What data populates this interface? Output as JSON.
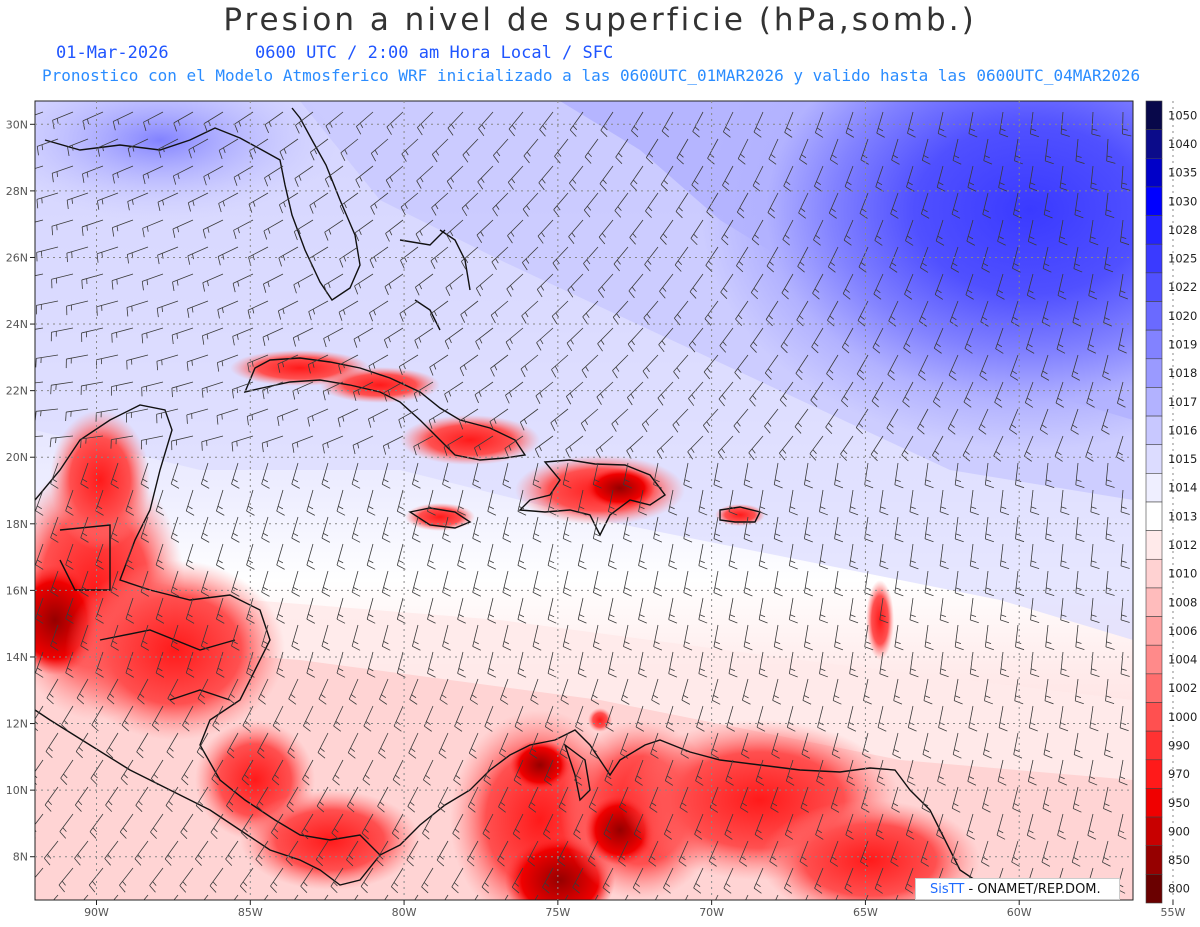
{
  "title": "Presion a nivel de superficie (hPa,somb.)",
  "subtitle": {
    "date": "01-Mar-2026",
    "time": "0600 UTC / 2:00 am Hora Local / SFC",
    "forecast": "Pronostico con el Modelo Atmosferico WRF inicializado a las 0600UTC_01MAR2026 y valido hasta las  0600UTC_04MAR2026"
  },
  "map": {
    "lat_labels": [
      "30N",
      "28N",
      "26N",
      "24N",
      "22N",
      "20N",
      "18N",
      "16N",
      "14N",
      "12N",
      "10N",
      "8N"
    ],
    "lat_values": [
      30,
      28,
      26,
      24,
      22,
      20,
      18,
      16,
      14,
      12,
      10,
      8
    ],
    "lon_labels": [
      "90W",
      "85W",
      "80W",
      "75W",
      "70W",
      "65W",
      "60W",
      "55W"
    ],
    "lon_values": [
      -90,
      -85,
      -80,
      -75,
      -70,
      -65,
      -60,
      -55
    ],
    "lon_range": [
      -92,
      -56.3
    ],
    "lat_range": [
      6.7,
      30.7
    ],
    "gridlines": "dotted"
  },
  "colorbar": {
    "levels": [
      "1050",
      "1040",
      "1035",
      "1030",
      "1028",
      "1025",
      "1022",
      "1020",
      "1019",
      "1018",
      "1017",
      "1016",
      "1015",
      "1014",
      "1013",
      "1012",
      "1010",
      "1008",
      "1006",
      "1004",
      "1002",
      "1000",
      "990",
      "970",
      "950",
      "900",
      "850",
      "800"
    ],
    "colors": [
      "#08084a",
      "#0b0b8a",
      "#0000c8",
      "#0000ff",
      "#2323ff",
      "#3a3aff",
      "#5050ff",
      "#6a6aff",
      "#8282ff",
      "#9a9aff",
      "#b2b2ff",
      "#c8c8ff",
      "#dcdcff",
      "#efefff",
      "#ffffff",
      "#ffeaea",
      "#ffd2d2",
      "#ffbcbc",
      "#ffa2a2",
      "#ff8a8a",
      "#ff6e6e",
      "#ff5050",
      "#ff3232",
      "#ff1a1a",
      "#f00000",
      "#c80000",
      "#960000",
      "#6a0000"
    ]
  },
  "credit": {
    "logo": "SisTT",
    "text": "- ONAMET/REP.DOM."
  }
}
